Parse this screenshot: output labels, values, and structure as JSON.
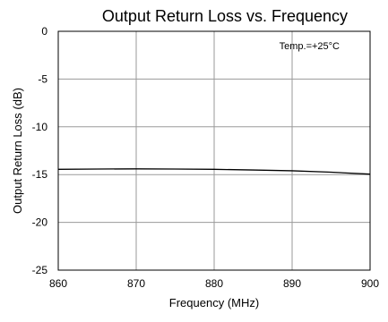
{
  "chart_data": {
    "type": "line",
    "title": "Output Return Loss vs. Frequency",
    "xlabel": "Frequency (MHz)",
    "ylabel": "Output Return Loss (dB)",
    "annotation": "Temp.=+25°C",
    "xlim": [
      860,
      900
    ],
    "ylim": [
      -25,
      0
    ],
    "x_ticks": [
      860,
      870,
      880,
      890,
      900
    ],
    "y_ticks": [
      0,
      -5,
      -10,
      -15,
      -20,
      -25
    ],
    "grid": true,
    "series": [
      {
        "x": [
          860,
          865,
          870,
          875,
          880,
          885,
          890,
          895,
          900
        ],
        "y": [
          -14.45,
          -14.42,
          -14.4,
          -14.42,
          -14.45,
          -14.52,
          -14.6,
          -14.75,
          -14.95
        ]
      }
    ]
  }
}
